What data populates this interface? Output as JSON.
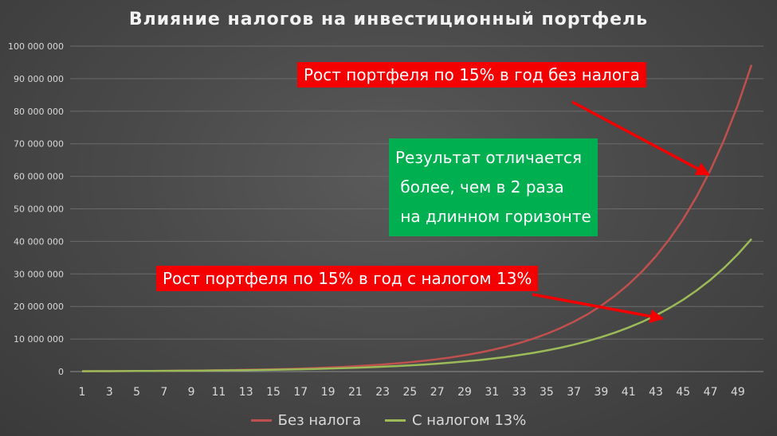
{
  "chart_data": {
    "type": "line",
    "title": "Влияние налогов на инвестиционный портфель",
    "x": [
      1,
      2,
      3,
      4,
      5,
      6,
      7,
      8,
      9,
      10,
      11,
      12,
      13,
      14,
      15,
      16,
      17,
      18,
      19,
      20,
      21,
      22,
      23,
      24,
      25,
      26,
      27,
      28,
      29,
      30,
      31,
      32,
      33,
      34,
      35,
      36,
      37,
      38,
      39,
      40,
      41,
      42,
      43,
      44,
      45,
      46,
      47,
      48,
      49,
      50
    ],
    "x_tick_labels": [
      "1",
      "3",
      "5",
      "7",
      "9",
      "11",
      "13",
      "15",
      "17",
      "19",
      "21",
      "23",
      "25",
      "27",
      "29",
      "31",
      "33",
      "35",
      "37",
      "39",
      "41",
      "43",
      "45",
      "47",
      "49"
    ],
    "ylim": [
      0,
      100000000
    ],
    "y_ticks": [
      0,
      10000000,
      20000000,
      30000000,
      40000000,
      50000000,
      60000000,
      70000000,
      80000000,
      90000000,
      100000000
    ],
    "y_tick_labels": [
      "0",
      "10 000 000",
      "20 000 000",
      "30 000 000",
      "40 000 000",
      "50 000 000",
      "60 000 000",
      "70 000 000",
      "80 000 000",
      "90 000 000",
      "100 000 000"
    ],
    "grid": true,
    "legend_position": "bottom",
    "series": [
      {
        "name": "Без налога",
        "color": "#c0504d",
        "values": [
          100000,
          115000,
          132250,
          152088,
          174901,
          201136,
          231306,
          266002,
          305902,
          351788,
          404556,
          465239,
          535025,
          615279,
          707571,
          813706,
          935762,
          1076126,
          1237545,
          1423177,
          1636654,
          1882152,
          2164475,
          2489146,
          2862518,
          3291895,
          3785680,
          4353531,
          5006561,
          5757545,
          6621177,
          7614354,
          8756507,
          10069983,
          11580480,
          13317552,
          15315185,
          17612463,
          20254332,
          23292482,
          26786354,
          30804307,
          35424953,
          40738696,
          46849500,
          53876925,
          61958464,
          71252233,
          81940068,
          94231078
        ]
      },
      {
        "name": "С налогом 13%",
        "color": "#9bbb59",
        "values": [
          100000,
          113050,
          127802,
          144480,
          163334,
          184649,
          208746,
          235986,
          266782,
          301597,
          340955,
          385449,
          435750,
          492615,
          556901,
          629576,
          711736,
          804617,
          909619,
          1028323,
          1162519,
          1314228,
          1485735,
          1679623,
          1898814,
          2146609,
          2426741,
          2743431,
          3101449,
          3506188,
          3963746,
          4481015,
          5065787,
          5726872,
          6474228,
          7319100,
          8274233,
          9354020,
          10574720,
          11954671,
          13514756,
          15278408,
          17272199,
          19526222,
          22074343,
          24954995,
          28211553,
          31893057,
          36055021,
          40760551
        ]
      }
    ],
    "annotations": [
      {
        "text": "Рост портфеля по 15% в год без налога",
        "color": "#f40000"
      },
      {
        "text": "Результат отличается\n более, чем в 2 раза\n на длинном горизонте",
        "color": "#00b050"
      },
      {
        "text": "Рост портфеля по 15% в год с налогом 13%",
        "color": "#f40000"
      }
    ]
  }
}
